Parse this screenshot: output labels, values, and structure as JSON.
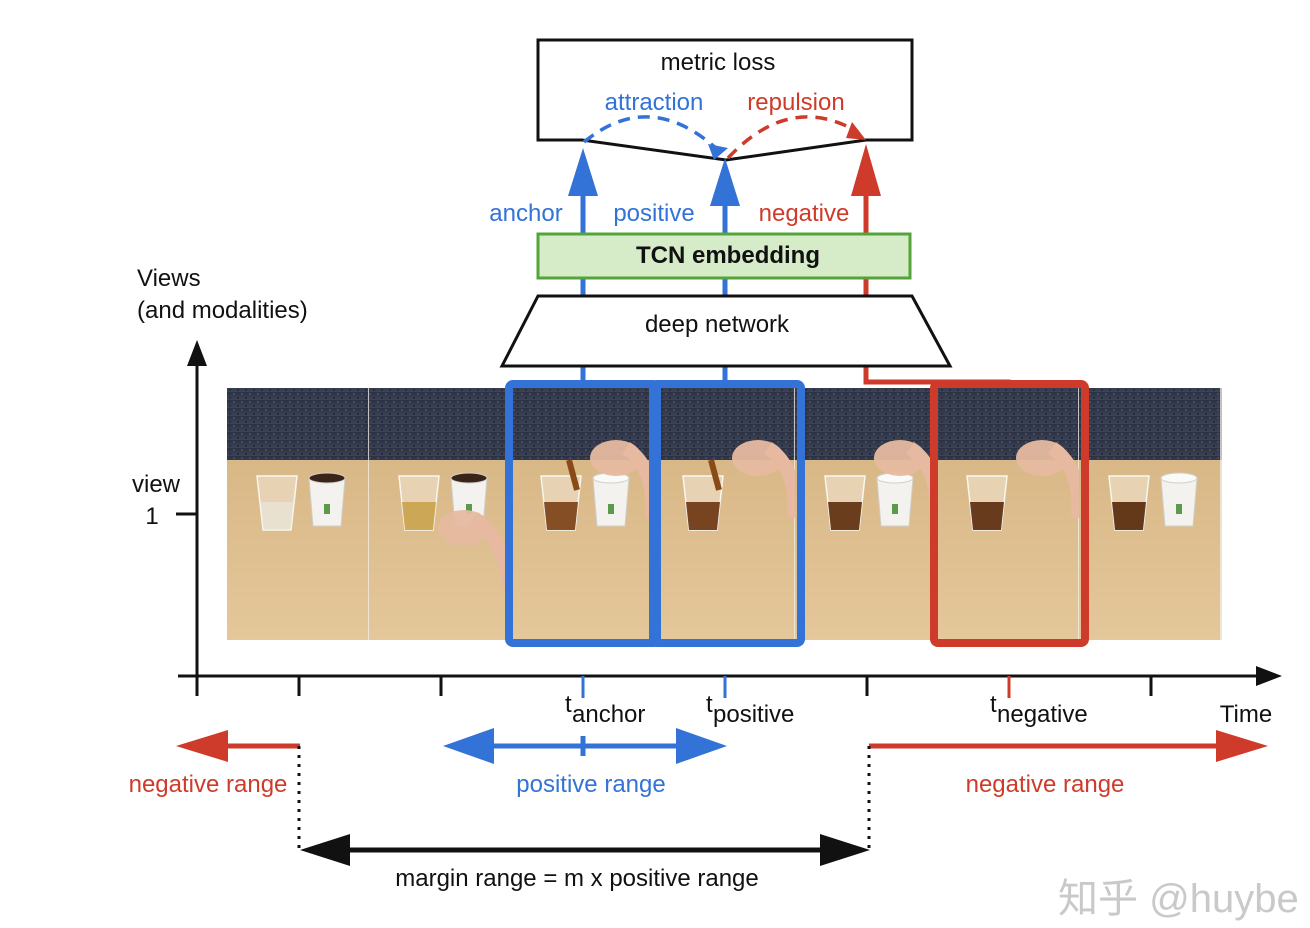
{
  "colors": {
    "blue": "#3372d6",
    "red": "#cf3b2a",
    "green_fill": "#d6ecc8",
    "green_stroke": "#55a43a",
    "black": "#111111"
  },
  "loss": {
    "title": "metric loss",
    "attraction": "attraction",
    "repulsion": "repulsion"
  },
  "inputs": {
    "anchor": "anchor",
    "positive": "positive",
    "negative": "negative"
  },
  "embedding": {
    "label": "TCN embedding"
  },
  "network": {
    "label": "deep network"
  },
  "y_axis": {
    "title_line1": "Views",
    "title_line2": "(and modalities)",
    "tick_line1": "view",
    "tick_line2": "1"
  },
  "x_axis": {
    "label": "Time",
    "t_anchor_main": "t",
    "t_anchor_sub": "anchor",
    "t_positive_main": "t",
    "t_positive_sub": "positive",
    "t_negative_main": "t",
    "t_negative_sub": "negative"
  },
  "ranges": {
    "negative_left": "negative range",
    "positive": "positive range",
    "negative_right": "negative range",
    "margin": "margin range = m x positive range"
  },
  "watermark": "知乎 @huybe",
  "frames": [
    {
      "name": "frame-1"
    },
    {
      "name": "frame-2"
    },
    {
      "name": "frame-3"
    },
    {
      "name": "frame-4"
    },
    {
      "name": "frame-5"
    },
    {
      "name": "frame-6"
    },
    {
      "name": "frame-7"
    }
  ]
}
